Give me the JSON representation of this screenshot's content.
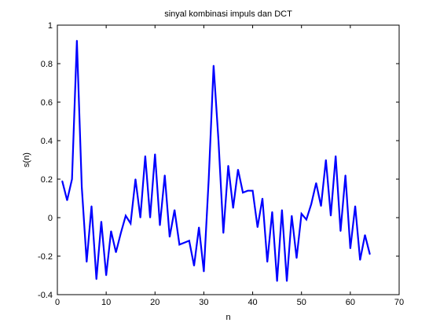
{
  "chart_data": {
    "type": "line",
    "title": "sinyal kombinasi impuls dan DCT",
    "xlabel": "n",
    "ylabel": "s(n)",
    "xlim": [
      0,
      70
    ],
    "ylim": [
      -0.4,
      1
    ],
    "xticks": [
      0,
      10,
      20,
      30,
      40,
      50,
      60,
      70
    ],
    "yticks": [
      -0.4,
      -0.2,
      0,
      0.2,
      0.4,
      0.6,
      0.8,
      1
    ],
    "xtick_labels": [
      "0",
      "10",
      "20",
      "30",
      "40",
      "50",
      "60",
      "70"
    ],
    "ytick_labels": [
      "-0.4",
      "-0.2",
      "0",
      "0.2",
      "0.4",
      "0.6",
      "0.8",
      "1"
    ],
    "grid": false,
    "series": [
      {
        "color": "#0000ff",
        "x": [
          1,
          2,
          3,
          4,
          5,
          6,
          7,
          8,
          9,
          10,
          11,
          12,
          13,
          14,
          15,
          16,
          17,
          18,
          19,
          20,
          21,
          22,
          23,
          24,
          25,
          26,
          27,
          28,
          29,
          30,
          31,
          32,
          33,
          34,
          35,
          36,
          37,
          38,
          39,
          40,
          41,
          42,
          43,
          44,
          45,
          46,
          47,
          48,
          49,
          50,
          51,
          52,
          53,
          54,
          55,
          56,
          57,
          58,
          59,
          60,
          61,
          62,
          63,
          64
        ],
        "y": [
          0.19,
          0.09,
          0.2,
          0.92,
          0.16,
          -0.23,
          0.06,
          -0.32,
          -0.02,
          -0.3,
          -0.07,
          -0.18,
          -0.08,
          0.01,
          -0.03,
          0.2,
          0.0,
          0.32,
          0.0,
          0.33,
          -0.04,
          0.22,
          -0.1,
          0.04,
          -0.14,
          -0.13,
          -0.12,
          -0.25,
          -0.05,
          -0.28,
          0.2,
          0.79,
          0.4,
          -0.08,
          0.27,
          0.05,
          0.25,
          0.13,
          0.14,
          0.14,
          -0.05,
          0.1,
          -0.23,
          0.03,
          -0.33,
          0.04,
          -0.33,
          0.01,
          -0.21,
          0.02,
          -0.01,
          0.07,
          0.18,
          0.06,
          0.3,
          0.01,
          0.32,
          -0.07,
          0.22,
          -0.16,
          0.06,
          -0.22,
          -0.09,
          -0.19
        ]
      }
    ]
  }
}
